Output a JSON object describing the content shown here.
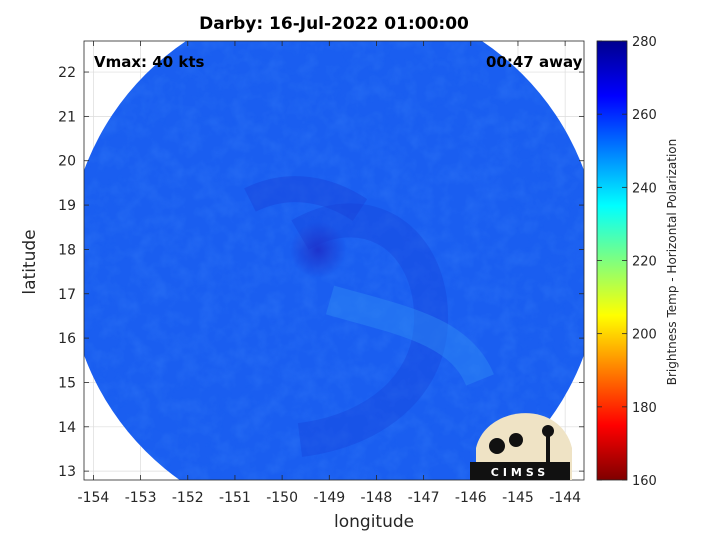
{
  "chart_data": {
    "type": "heatmap",
    "title": "Darby: 16-Jul-2022 01:00:00",
    "xlabel": "longitude",
    "ylabel": "latitude",
    "xlim": [
      -154.2,
      -143.6
    ],
    "ylim": [
      12.8,
      22.7
    ],
    "xticks": [
      -154,
      -153,
      -152,
      -151,
      -150,
      -149,
      -148,
      -147,
      -146,
      -145,
      -144
    ],
    "yticks": [
      13,
      14,
      15,
      16,
      17,
      18,
      19,
      20,
      21,
      22
    ],
    "grid": true,
    "annotations": {
      "vmax": "Vmax: 40 kts",
      "time_offset": "00:47 away"
    },
    "storm_center": {
      "lon": -149.2,
      "lat": 17.9
    },
    "swath_center": {
      "lon": -148.9,
      "lat": 17.7
    },
    "swath_radius_deg": 5.65,
    "colorbar": {
      "label": "Brightness Temp - Horizontal Polarization",
      "range": [
        160,
        280
      ],
      "ticks": [
        160,
        180,
        200,
        220,
        240,
        260,
        280
      ],
      "colormap": [
        "#7f0000",
        "#ff0000",
        "#ff7f00",
        "#ffff00",
        "#7fff7f",
        "#00ffff",
        "#007fff",
        "#0000ff",
        "#00008f"
      ]
    },
    "field_background_value": 262,
    "logo": {
      "text": "CIMSS"
    }
  }
}
